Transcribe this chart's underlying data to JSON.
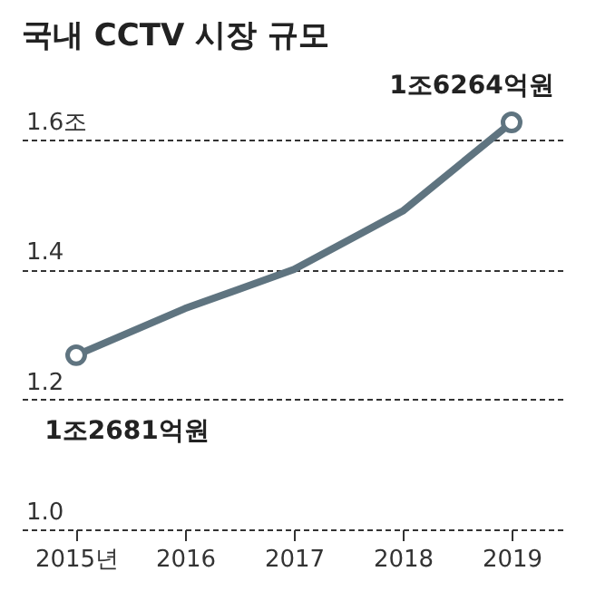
{
  "chart_data": {
    "type": "line",
    "title": "국내 CCTV 시장 규모",
    "categories": [
      "2015년",
      "2016",
      "2017",
      "2018",
      "2019"
    ],
    "series": [
      {
        "color": "#5f7480",
        "values": [
          1.2681,
          1.34,
          1.4,
          1.49,
          1.6264
        ]
      }
    ],
    "ylim": [
      1.0,
      1.72
    ],
    "yticks": [
      {
        "value": 1.0,
        "label": "1.0"
      },
      {
        "value": 1.2,
        "label": "1.2"
      },
      {
        "value": 1.4,
        "label": "1.4"
      },
      {
        "value": 1.6,
        "label": "1.6조"
      }
    ],
    "grid": "y",
    "line_style": "solid",
    "annotations": [
      {
        "text": "1조2681억원",
        "x": "2015년",
        "y": 1.2681
      },
      {
        "text": "1조6264억원",
        "x": "2019",
        "y": 1.6264
      }
    ]
  }
}
